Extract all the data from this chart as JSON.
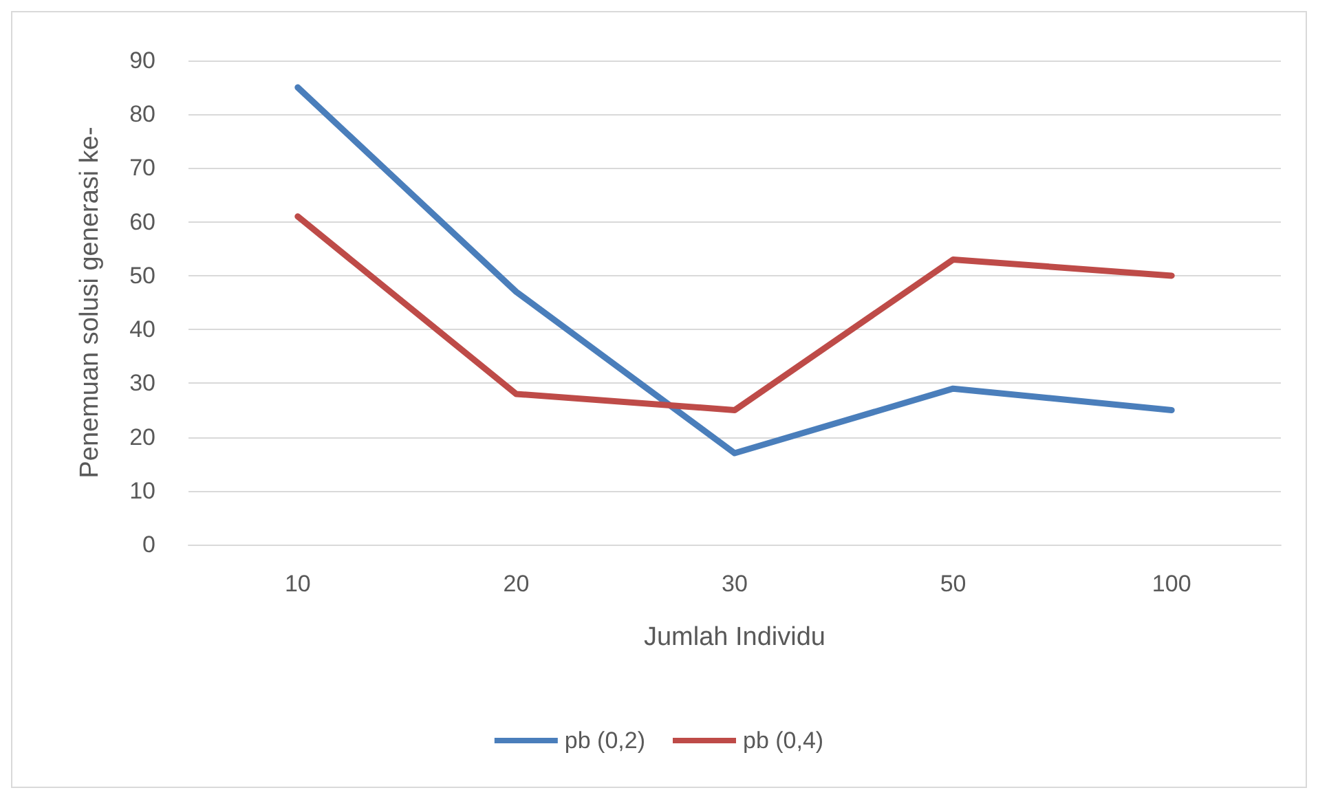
{
  "chart_data": {
    "type": "line",
    "xlabel": "Jumlah Individu",
    "ylabel": "Penemuan solusi generasi ke-",
    "categories": [
      "10",
      "20",
      "30",
      "50",
      "100"
    ],
    "series": [
      {
        "name": "pb (0,2)",
        "color": "#4a7ebb",
        "values": [
          85,
          47,
          17,
          29,
          25
        ]
      },
      {
        "name": "pb (0,4)",
        "color": "#be4b48",
        "values": [
          61,
          28,
          25,
          53,
          50
        ]
      }
    ],
    "ylim": [
      0,
      90
    ],
    "yticks": [
      0,
      10,
      20,
      30,
      40,
      50,
      60,
      70,
      80,
      90
    ],
    "grid": "y",
    "legend": "bottom",
    "marker": "none",
    "line_style": "solid"
  }
}
